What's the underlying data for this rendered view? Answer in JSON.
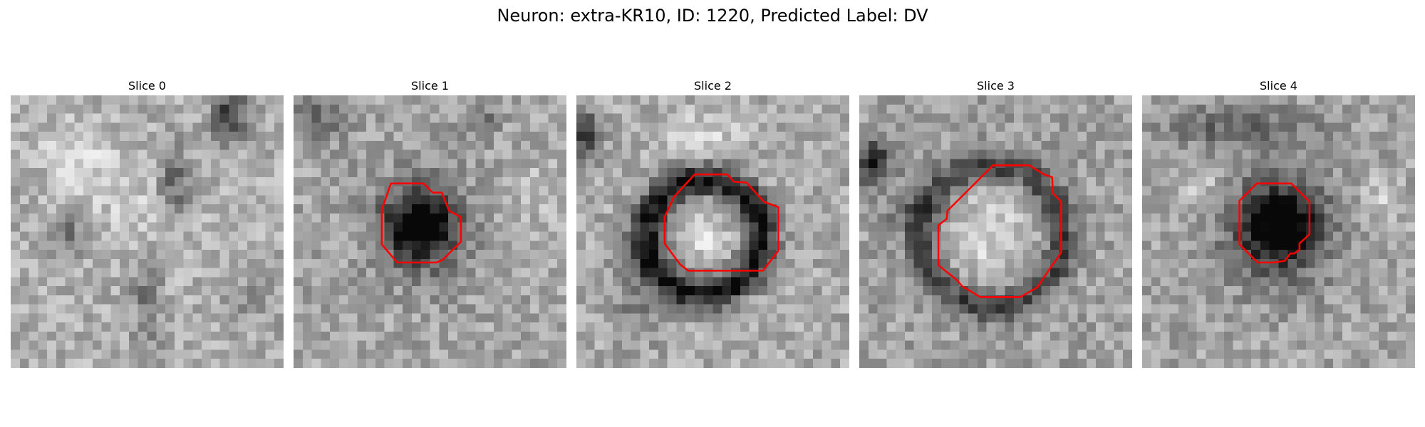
{
  "figure": {
    "title": "Neuron: extra-KR10, ID: 1220, Predicted Label: DV",
    "contour_color": "#ff0000"
  },
  "panels": [
    {
      "title": "Slice 0",
      "has_contour": false,
      "feature": "none"
    },
    {
      "title": "Slice 1",
      "has_contour": true,
      "feature": "dark blob"
    },
    {
      "title": "Slice 2",
      "has_contour": true,
      "feature": "dark ring with bright center"
    },
    {
      "title": "Slice 3",
      "has_contour": true,
      "feature": "bright disk with dark rim"
    },
    {
      "title": "Slice 4",
      "has_contour": true,
      "feature": "dark blob"
    }
  ]
}
